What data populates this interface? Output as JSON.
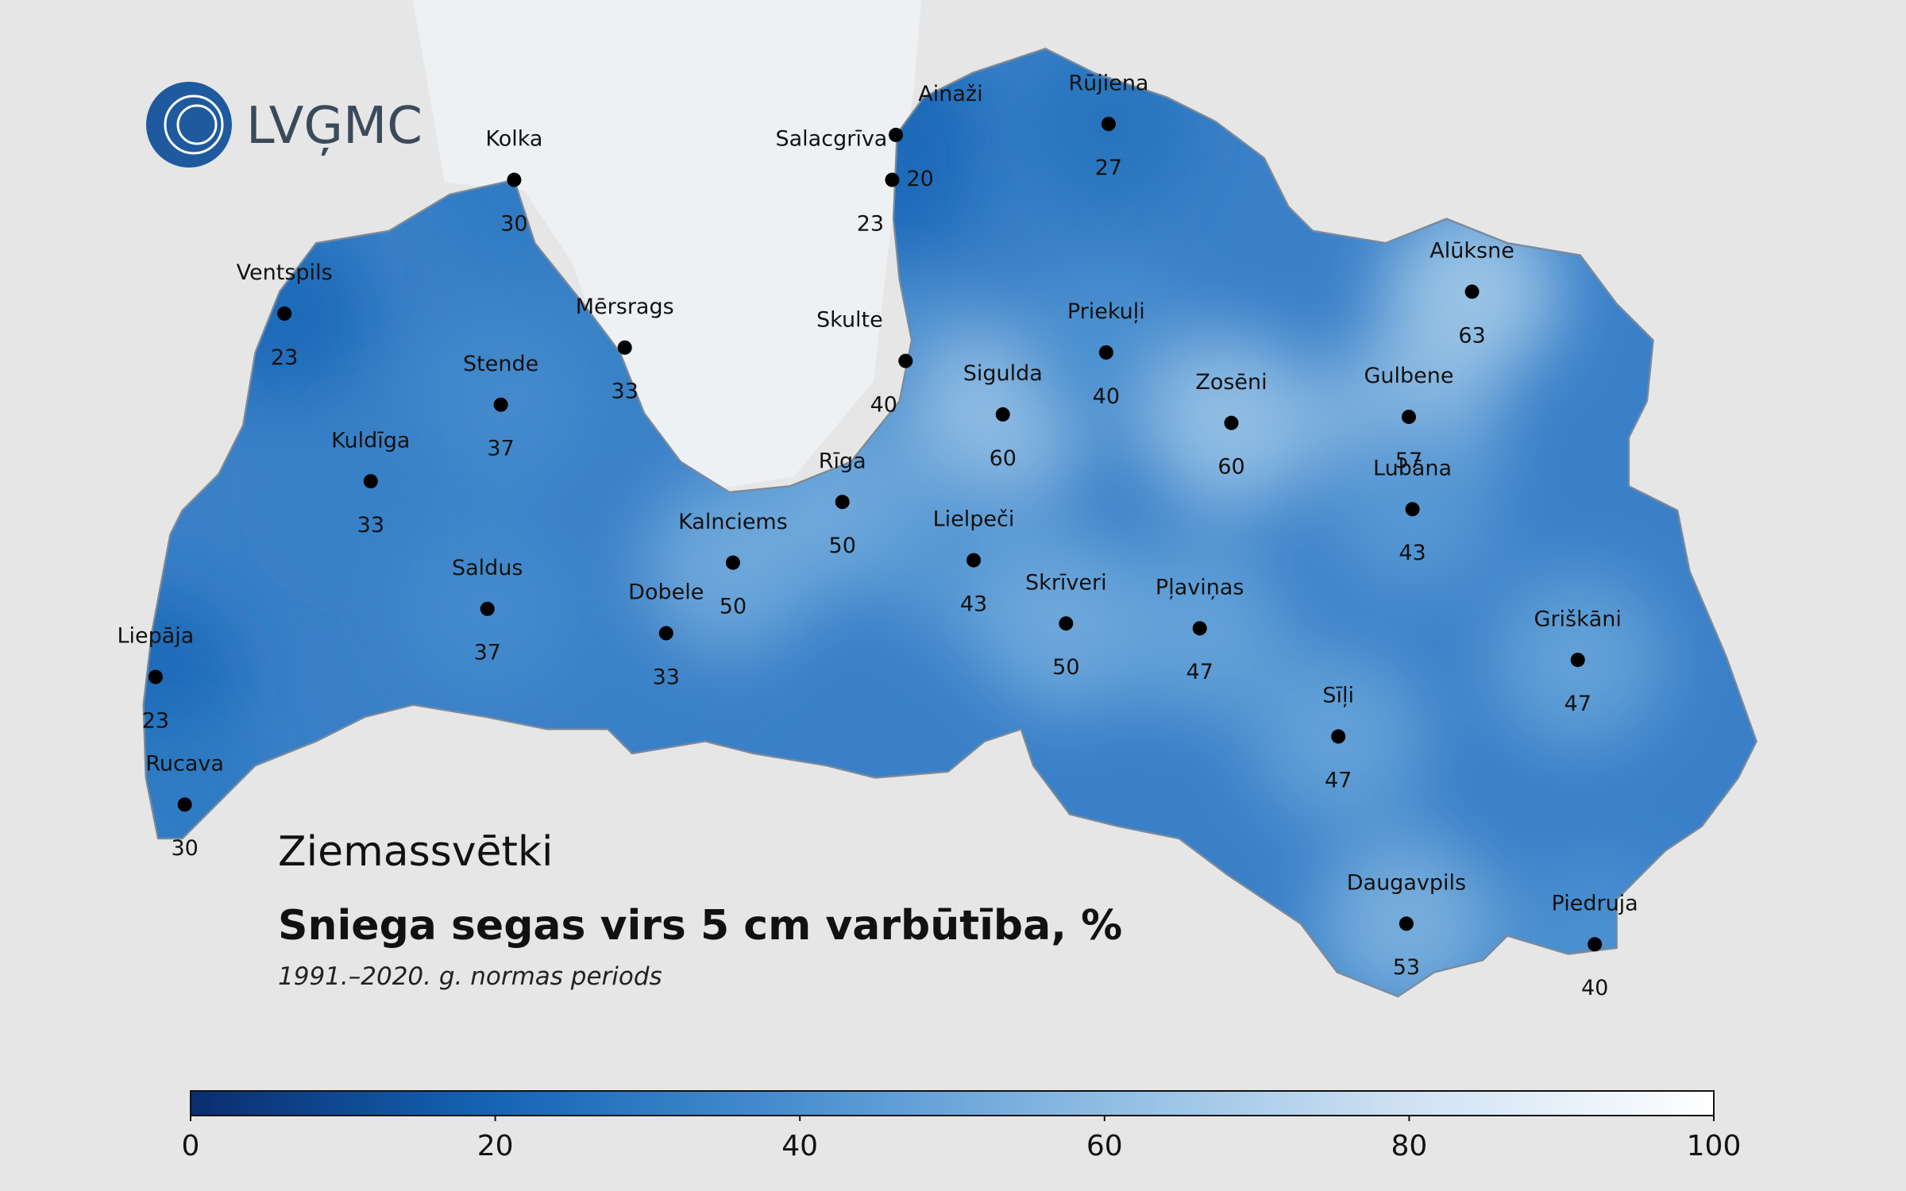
{
  "logo": "LVĢMC",
  "title": "Ziemassvētki",
  "subtitle": "Sniega segas virs 5 cm varbūtība, %",
  "period": "1991.–2020. g. normas periods",
  "stations": [
    {
      "name": "Kolka",
      "value": 30
    },
    {
      "name": "Ventspils",
      "value": 23
    },
    {
      "name": "Mērsrags",
      "value": 33
    },
    {
      "name": "Stende",
      "value": 37
    },
    {
      "name": "Kuldīga",
      "value": 33
    },
    {
      "name": "Saldus",
      "value": 37
    },
    {
      "name": "Liepāja",
      "value": 23
    },
    {
      "name": "Rucava",
      "value": 30
    },
    {
      "name": "Dobele",
      "value": 33
    },
    {
      "name": "Kalnciems",
      "value": 50
    },
    {
      "name": "Rīga",
      "value": 50
    },
    {
      "name": "Ainaži",
      "value": 20
    },
    {
      "name": "Salacgrīva",
      "value": 23
    },
    {
      "name": "Skulte",
      "value": 40
    },
    {
      "name": "Sigulda",
      "value": 60
    },
    {
      "name": "Lielpeči",
      "value": 43
    },
    {
      "name": "Skrīveri",
      "value": 50
    },
    {
      "name": "Rūjiena",
      "value": 27
    },
    {
      "name": "Priekuļi",
      "value": 40
    },
    {
      "name": "Zosēni",
      "value": 60
    },
    {
      "name": "Pļaviņas",
      "value": 47
    },
    {
      "name": "Gulbene",
      "value": 57
    },
    {
      "name": "Alūksne",
      "value": 63
    },
    {
      "name": "Lubāna",
      "value": 43
    },
    {
      "name": "Griškāni",
      "value": 47
    },
    {
      "name": "Sīļi",
      "value": 47
    },
    {
      "name": "Daugavpils",
      "value": 53
    },
    {
      "name": "Piedruja",
      "value": 40
    }
  ],
  "colorbar": {
    "range": [
      0,
      100
    ],
    "ticks": [
      0,
      20,
      40,
      60,
      80,
      100
    ]
  }
}
